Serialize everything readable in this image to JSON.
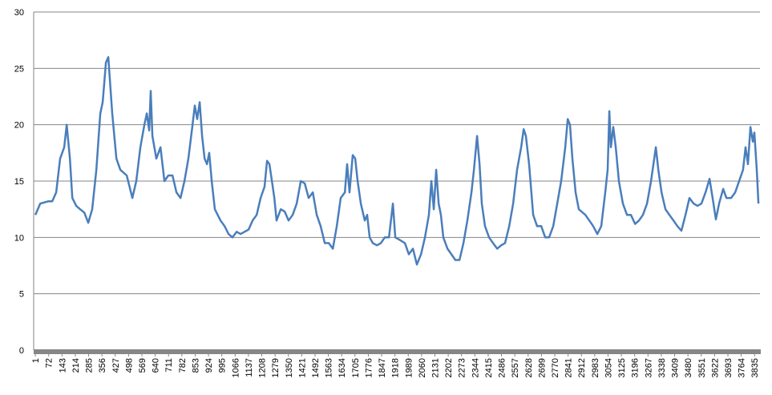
{
  "chart_data": {
    "type": "line",
    "color": "#4a7ebb",
    "x": [
      1,
      27,
      69,
      91,
      112,
      133,
      155,
      168,
      185,
      198,
      219,
      240,
      262,
      283,
      304,
      326,
      347,
      360,
      377,
      390,
      411,
      433,
      454,
      488,
      518,
      539,
      561,
      582,
      595,
      608,
      616,
      625,
      646,
      668,
      689,
      710,
      732,
      753,
      775,
      796,
      817,
      839,
      851,
      864,
      877,
      890,
      903,
      916,
      928,
      941,
      958,
      988,
      1010,
      1031,
      1052,
      1074,
      1095,
      1116,
      1138,
      1159,
      1181,
      1202,
      1223,
      1236,
      1249,
      1262,
      1275,
      1287,
      1309,
      1330,
      1351,
      1373,
      1394,
      1416,
      1437,
      1458,
      1480,
      1501,
      1522,
      1544,
      1565,
      1587,
      1608,
      1629,
      1651,
      1663,
      1676,
      1693,
      1706,
      1719,
      1736,
      1757,
      1770,
      1783,
      1800,
      1822,
      1843,
      1864,
      1886,
      1907,
      1920,
      1941,
      1971,
      1992,
      2014,
      2035,
      2057,
      2078,
      2099,
      2112,
      2125,
      2138,
      2151,
      2163,
      2176,
      2198,
      2219,
      2240,
      2262,
      2283,
      2304,
      2326,
      2339,
      2356,
      2369,
      2381,
      2398,
      2420,
      2441,
      2463,
      2484,
      2505,
      2527,
      2548,
      2569,
      2591,
      2604,
      2616,
      2633,
      2655,
      2676,
      2698,
      2719,
      2740,
      2762,
      2783,
      2804,
      2826,
      2839,
      2851,
      2864,
      2881,
      2898,
      2933,
      2954,
      2975,
      2997,
      3018,
      3039,
      3052,
      3061,
      3069,
      3082,
      3095,
      3112,
      3133,
      3155,
      3176,
      3198,
      3219,
      3240,
      3262,
      3283,
      3296,
      3309,
      3322,
      3339,
      3360,
      3381,
      3403,
      3424,
      3445,
      3467,
      3488,
      3510,
      3531,
      3552,
      3574,
      3595,
      3616,
      3629,
      3646,
      3668,
      3685,
      3710,
      3732,
      3753,
      3774,
      3787,
      3800,
      3813,
      3826,
      3834,
      3847,
      3856
    ],
    "values": [
      12,
      13,
      13.2,
      13.2,
      14,
      17,
      18,
      20,
      17,
      13.5,
      12.8,
      12.5,
      12.2,
      11.3,
      12.5,
      16,
      21,
      22,
      25.5,
      26,
      21,
      17,
      16,
      15.5,
      13.5,
      15,
      18,
      20,
      21,
      19.5,
      23,
      19,
      17,
      18,
      15,
      15.5,
      15.5,
      14,
      13.5,
      15,
      17,
      20,
      21.7,
      20.5,
      22,
      19,
      17,
      16.5,
      17.5,
      15,
      12.5,
      11.5,
      11,
      10.3,
      10,
      10.5,
      10.3,
      10.5,
      10.7,
      11.5,
      12,
      13.5,
      14.5,
      16.8,
      16.5,
      15,
      13.5,
      11.5,
      12.5,
      12.3,
      11.5,
      12,
      13,
      15,
      14.8,
      13.5,
      14,
      12,
      11,
      9.5,
      9.5,
      9,
      11,
      13.5,
      14,
      16.5,
      14,
      17.3,
      17,
      15,
      13,
      11.5,
      12,
      10,
      9.5,
      9.3,
      9.5,
      10,
      10,
      13,
      10,
      9.8,
      9.5,
      8.5,
      9,
      7.6,
      8.5,
      10,
      12,
      15,
      12.5,
      16,
      13,
      12,
      10,
      9,
      8.5,
      8,
      8,
      9.5,
      11.5,
      14,
      16,
      19,
      16.5,
      13,
      11,
      10,
      9.5,
      9,
      9.3,
      9.5,
      11,
      13,
      16,
      18,
      19.6,
      19,
      16.5,
      12,
      11,
      11,
      10,
      10,
      11,
      13,
      15,
      18,
      20.5,
      20,
      17,
      14,
      12.5,
      12,
      11.5,
      11,
      10.3,
      11,
      14,
      16,
      21.2,
      18,
      19.8,
      18,
      15,
      13,
      12,
      12,
      11.2,
      11.5,
      12,
      13,
      15,
      16.5,
      18,
      16,
      14,
      12.5,
      12,
      11.5,
      11,
      10.6,
      12,
      13.5,
      13,
      12.8,
      13,
      14,
      15.2,
      13,
      11.6,
      13,
      14.3,
      13.5,
      13.5,
      14,
      15,
      16,
      18,
      16.5,
      19.8,
      18.5,
      19.3,
      16,
      13
    ],
    "xlim": [
      -8,
      3864
    ],
    "xticks": [
      1,
      72,
      143,
      214,
      285,
      356,
      427,
      498,
      569,
      640,
      711,
      782,
      853,
      924,
      995,
      1066,
      1137,
      1208,
      1279,
      1350,
      1421,
      1492,
      1563,
      1634,
      1705,
      1776,
      1847,
      1918,
      1989,
      2060,
      2131,
      2202,
      2273,
      2344,
      2415,
      2486,
      2557,
      2628,
      2699,
      2770,
      2841,
      2912,
      2983,
      3054,
      3125,
      3196,
      3267,
      3338,
      3409,
      3480,
      3551,
      3622,
      3693,
      3764,
      3835
    ],
    "ylim": [
      0,
      30
    ],
    "yticks": [
      0,
      5,
      10,
      15,
      20,
      25,
      30
    ],
    "grid": true
  }
}
